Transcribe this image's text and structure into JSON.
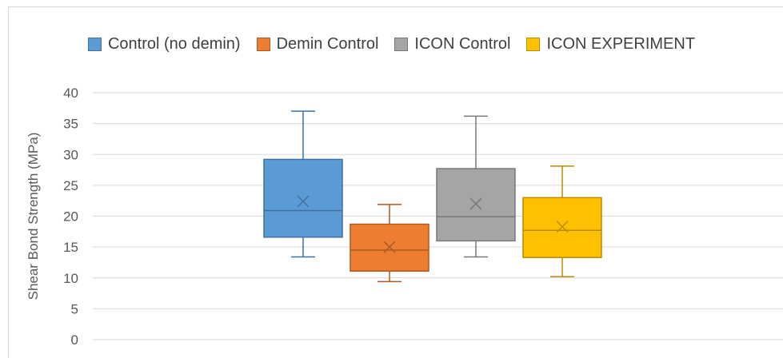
{
  "chart_data": {
    "type": "box",
    "title": "",
    "xlabel": "",
    "ylabel": "Shear Bond Strength (MPa)",
    "ylim": [
      0,
      40
    ],
    "yticks": [
      0,
      5,
      10,
      15,
      20,
      25,
      30,
      35,
      40
    ],
    "grid": true,
    "legend_position": "top",
    "series": [
      {
        "name": "Control (no demin)",
        "color": "#5b9bd5",
        "edge": "#41719c",
        "min": 13.4,
        "q1": 16.6,
        "median": 20.9,
        "q3": 29.2,
        "max": 37.0,
        "mean": 22.4
      },
      {
        "name": "Demin Control",
        "color": "#ed7d31",
        "edge": "#ae5a21",
        "min": 9.4,
        "q1": 11.1,
        "median": 14.5,
        "q3": 18.7,
        "max": 21.9,
        "mean": 15.0
      },
      {
        "name": "ICON Control",
        "color": "#a5a5a5",
        "edge": "#787878",
        "min": 13.4,
        "q1": 16.0,
        "median": 19.9,
        "q3": 27.7,
        "max": 36.2,
        "mean": 22.0
      },
      {
        "name": "ICON EXPERIMENT",
        "color": "#ffc000",
        "edge": "#bc8c00",
        "min": 10.2,
        "q1": 13.3,
        "median": 17.7,
        "q3": 23.0,
        "max": 28.1,
        "mean": 18.3
      }
    ]
  }
}
